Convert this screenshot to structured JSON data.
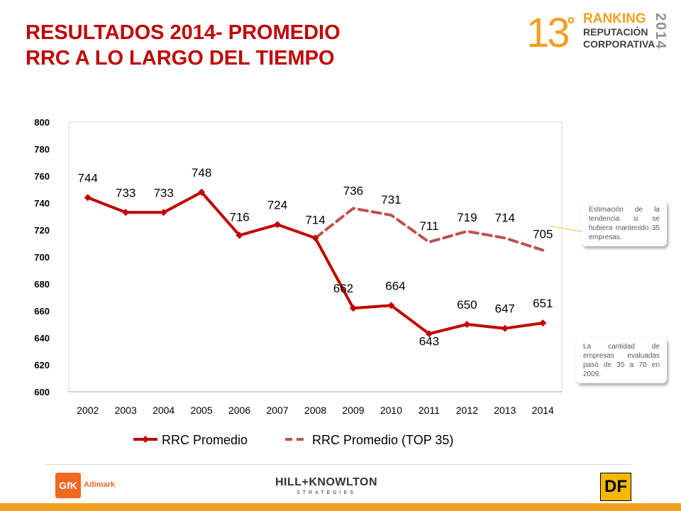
{
  "slide": {
    "title_line1": "RESULTADOS 2014- PROMEDIO",
    "title_line2": "RRC A LO LARGO DEL TIEMPO"
  },
  "brand": {
    "number": "13",
    "ordinal": "º",
    "line1": "RANKING",
    "line2": "REPUTACIÓN",
    "line3": "CORPORATIVA",
    "year": "2014"
  },
  "notes": {
    "estimation": "Estimación de la tendencia si se hubiera mantenido 35 empresas.",
    "companies": "La cantidad de empresas evaluadas pasó de 35 a 70 en 2009."
  },
  "logos": {
    "gfk": "GfK",
    "gfk_sub": "Adimark",
    "hk_main": "HILL+KNOWLTON",
    "hk_sub": "STRATEGIES",
    "df": "DF"
  },
  "colors": {
    "title": "#c00000",
    "series_main": "#c00000",
    "series_top35": "#c0504d",
    "brand": "#f0a020"
  },
  "chart_data": {
    "type": "line",
    "x": [
      "2002",
      "2003",
      "2004",
      "2005",
      "2006",
      "2007",
      "2008",
      "2009",
      "2010",
      "2011",
      "2012",
      "2013",
      "2014"
    ],
    "ylim": [
      600,
      800
    ],
    "yticks": [
      600,
      620,
      640,
      660,
      680,
      700,
      720,
      740,
      760,
      780,
      800
    ],
    "grid": false,
    "legend": "bottom",
    "series": [
      {
        "name": "RRC Promedio",
        "style": "solid-diamond",
        "values": [
          744,
          733,
          733,
          748,
          716,
          724,
          714,
          662,
          664,
          643,
          650,
          647,
          651
        ]
      },
      {
        "name": "RRC Promedio (TOP 35)",
        "style": "dashed",
        "values": [
          null,
          null,
          null,
          null,
          null,
          null,
          714,
          736,
          731,
          711,
          719,
          714,
          705
        ]
      }
    ]
  }
}
